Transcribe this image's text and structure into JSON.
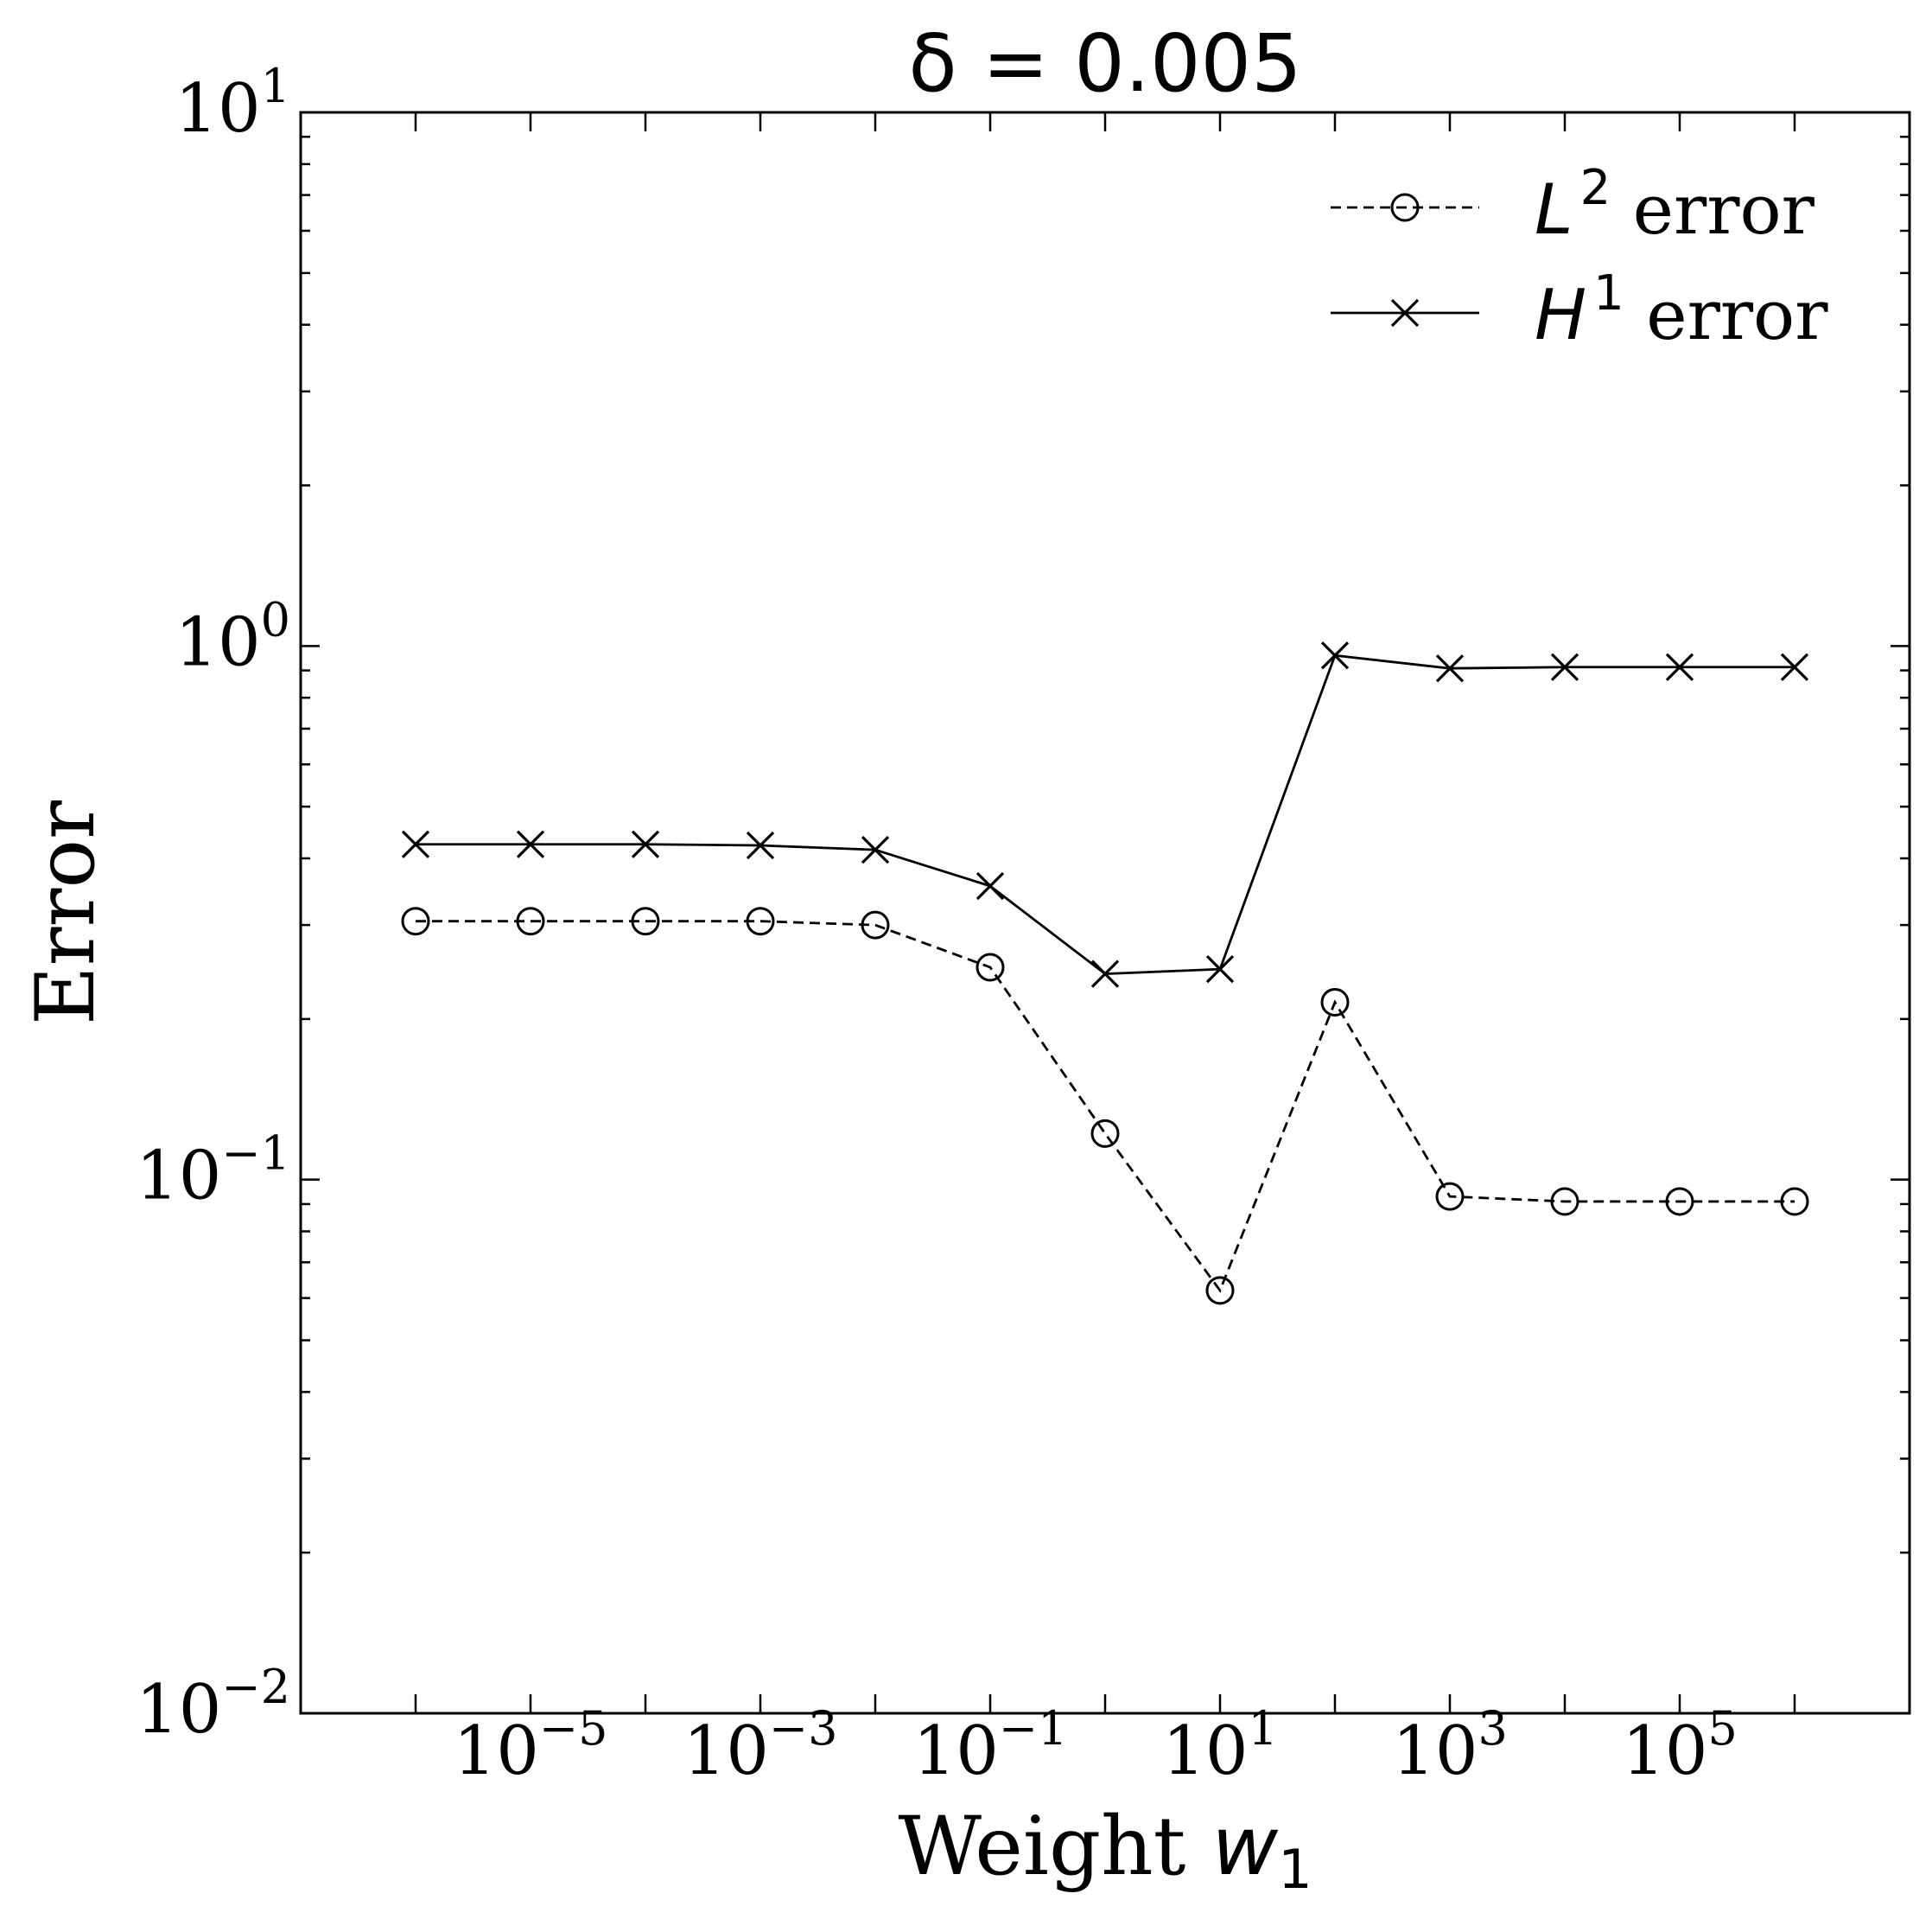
{
  "chart_data": {
    "type": "line",
    "title": {
      "base": "δ = 0.005"
    },
    "xlabel": {
      "base": "Weight ",
      "italic": "w",
      "sub": "1"
    },
    "ylabel": "Error",
    "x_scale": "log",
    "y_scale": "log",
    "xlim": [
      1e-07,
      10000000.0
    ],
    "ylim": [
      0.01,
      10
    ],
    "x_ticks": [
      {
        "base": "10",
        "exp": "−5",
        "value": 1e-05
      },
      {
        "base": "10",
        "exp": "−3",
        "value": 0.001
      },
      {
        "base": "10",
        "exp": "−1",
        "value": 0.1
      },
      {
        "base": "10",
        "exp": "1",
        "value": 10.0
      },
      {
        "base": "10",
        "exp": "3",
        "value": 1000.0
      },
      {
        "base": "10",
        "exp": "5",
        "value": 100000.0
      }
    ],
    "y_ticks": [
      {
        "base": "10",
        "exp": "−2",
        "value": 0.01
      },
      {
        "base": "10",
        "exp": "−1",
        "value": 0.1
      },
      {
        "base": "10",
        "exp": "0",
        "value": 1
      },
      {
        "base": "10",
        "exp": "1",
        "value": 10
      }
    ],
    "grid": false,
    "legend_position": "top-right",
    "x": [
      1e-06,
      1e-05,
      0.0001,
      0.001,
      0.01,
      0.1,
      1,
      10,
      100,
      1000,
      10000,
      100000,
      1000000
    ],
    "series": [
      {
        "name": "L² error",
        "label_italic": "L",
        "label_exp": "2",
        "label_rest": " error",
        "style": "dashed",
        "marker": "circle",
        "values": [
          0.305,
          0.305,
          0.305,
          0.305,
          0.3,
          0.25,
          0.122,
          0.062,
          0.215,
          0.093,
          0.091,
          0.091,
          0.091
        ]
      },
      {
        "name": "H¹ error",
        "label_italic": "H",
        "label_exp": "1",
        "label_rest": " error",
        "style": "solid",
        "marker": "x",
        "values": [
          0.425,
          0.425,
          0.425,
          0.423,
          0.415,
          0.355,
          0.243,
          0.248,
          0.96,
          0.908,
          0.913,
          0.913,
          0.913
        ]
      }
    ]
  },
  "colors": {
    "line": "#000000",
    "background": "#ffffff"
  }
}
